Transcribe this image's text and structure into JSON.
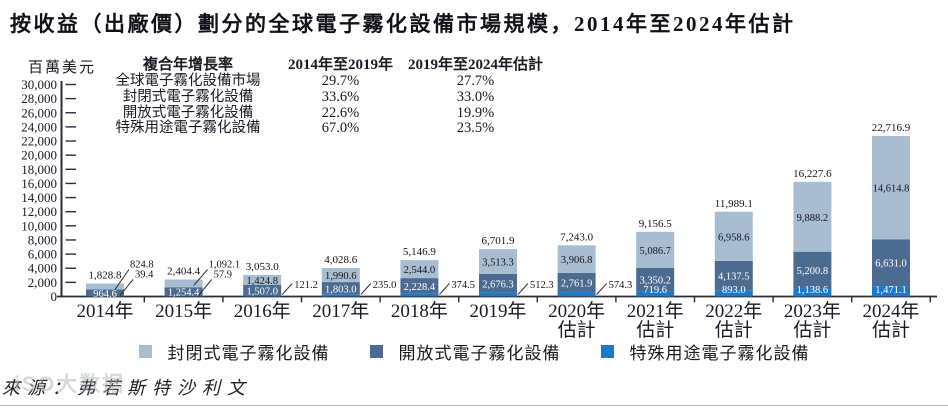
{
  "title": "按收益（出廠價）劃分的全球電子霧化設備市場規模，2014年至2024年估計",
  "cagr_table": {
    "header": "複合年增長率",
    "col_headers": [
      "2014年至2019年",
      "2019年至2024年估計"
    ],
    "rows": [
      {
        "label": "全球電子霧化設備市場",
        "v1": "29.7%",
        "v2": "27.7%"
      },
      {
        "label": "封閉式電子霧化設備",
        "v1": "33.6%",
        "v2": "33.0%"
      },
      {
        "label": "開放式電子霧化設備",
        "v1": "22.6%",
        "v2": "19.9%"
      },
      {
        "label": "特殊用途電子霧化設備",
        "v1": "67.0%",
        "v2": "23.5%"
      }
    ]
  },
  "chart_data": {
    "type": "bar",
    "stacked": true,
    "title": "按收益（出廠價）劃分的全球電子霧化設備市場規模，2014年至2024年估計",
    "unit_label": "百萬美元",
    "xlabel": "",
    "ylabel": "百萬美元",
    "ylim": [
      0,
      30000
    ],
    "ytick_step": 2000,
    "grid": false,
    "legend_position": "bottom",
    "categories": [
      "2014年",
      "2015年",
      "2016年",
      "2017年",
      "2018年",
      "2019年",
      "2020年",
      "2021年",
      "2022年",
      "2023年",
      "2024年"
    ],
    "category_notes": [
      "",
      "",
      "",
      "",
      "",
      "",
      "估計",
      "估計",
      "估計",
      "估計",
      "估計"
    ],
    "series": [
      {
        "name": "封閉式電子霧化設備",
        "color": "#a9bdd0",
        "values": [
          824.8,
          1092.1,
          1424.8,
          1990.6,
          2544.0,
          3513.3,
          3906.8,
          5086.7,
          6958.6,
          9888.2,
          14614.8
        ]
      },
      {
        "name": "開放式電子霧化設備",
        "color": "#4c6b91",
        "values": [
          964.6,
          1254.4,
          1507.0,
          1803.0,
          2228.4,
          2676.3,
          2761.9,
          3350.2,
          4137.5,
          5200.8,
          6631.0
        ]
      },
      {
        "name": "特殊用途電子霧化設備",
        "color": "#1d79c6",
        "values": [
          39.4,
          57.9,
          121.2,
          235.0,
          374.5,
          512.3,
          574.3,
          719.6,
          893.0,
          1138.6,
          1471.1
        ]
      }
    ],
    "totals": [
      1828.8,
      2404.4,
      3053.0,
      4028.6,
      5146.9,
      6701.9,
      7243.0,
      9156.5,
      11989.1,
      16227.6,
      22716.9
    ]
  },
  "source_line": "來源：弗若斯特沙利文",
  "watermark": "iSO大数据",
  "colors": {
    "axis": "#2b2b3b",
    "text": "#1a1a26",
    "label_dark": "#15151f",
    "label_light": "#ffffff"
  }
}
